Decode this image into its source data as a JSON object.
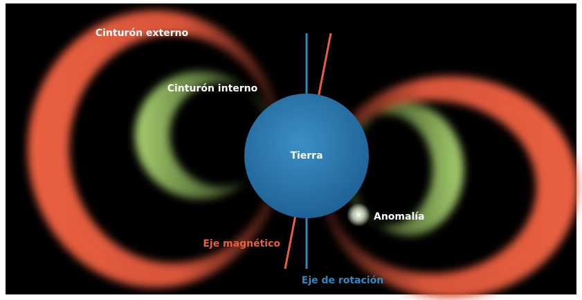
{
  "labels": {
    "outer_belt": "Cinturón externo",
    "inner_belt": "Cinturón interno",
    "earth": "Tierra",
    "anomaly": "Anomalía",
    "magnetic_axis": "Eje magnético",
    "rotation_axis": "Eje de rotación"
  }
}
